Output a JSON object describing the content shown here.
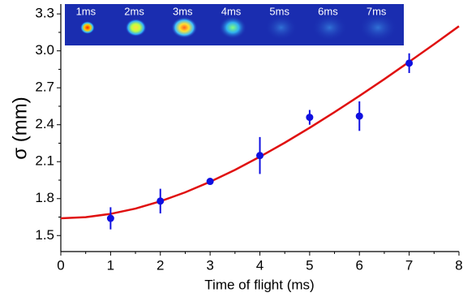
{
  "chart_data": {
    "type": "scatter",
    "x_label": "Time of flight (ms)",
    "y_label": "σ (mm)",
    "annotations": [
      "1ms",
      "2ms",
      "3ms",
      "4ms",
      "5ms",
      "6ms",
      "7ms"
    ],
    "xlim": [
      0,
      8
    ],
    "xticks": [
      0,
      1,
      2,
      3,
      4,
      5,
      6,
      7,
      8
    ],
    "ylim": [
      1.37,
      3.38
    ],
    "yticks": [
      1.5,
      1.8,
      2.1,
      2.4,
      2.7,
      {
        "value": 3,
        "label": "3.0"
      },
      3.3
    ],
    "series": [
      {
        "type": "scatter",
        "color": "#1010e0",
        "x": [
          1,
          2,
          3,
          4,
          5,
          6,
          7
        ],
        "values": [
          1.64,
          1.78,
          1.94,
          2.15,
          2.46,
          2.47,
          2.9
        ],
        "errors": [
          0.09,
          0.1,
          0.02,
          0.15,
          0.06,
          0.12,
          0.08
        ]
      },
      {
        "type": "line",
        "color": "#e01010",
        "x": [
          0,
          0.5,
          1,
          1.5,
          2,
          2.5,
          3,
          3.5,
          4,
          4.5,
          5,
          5.5,
          6,
          6.5,
          7,
          7.5,
          8
        ],
        "values": [
          1.64,
          1.649,
          1.676,
          1.719,
          1.778,
          1.851,
          1.937,
          2.033,
          2.14,
          2.254,
          2.375,
          2.502,
          2.634,
          2.77,
          2.911,
          3.054,
          3.2
        ]
      }
    ]
  }
}
